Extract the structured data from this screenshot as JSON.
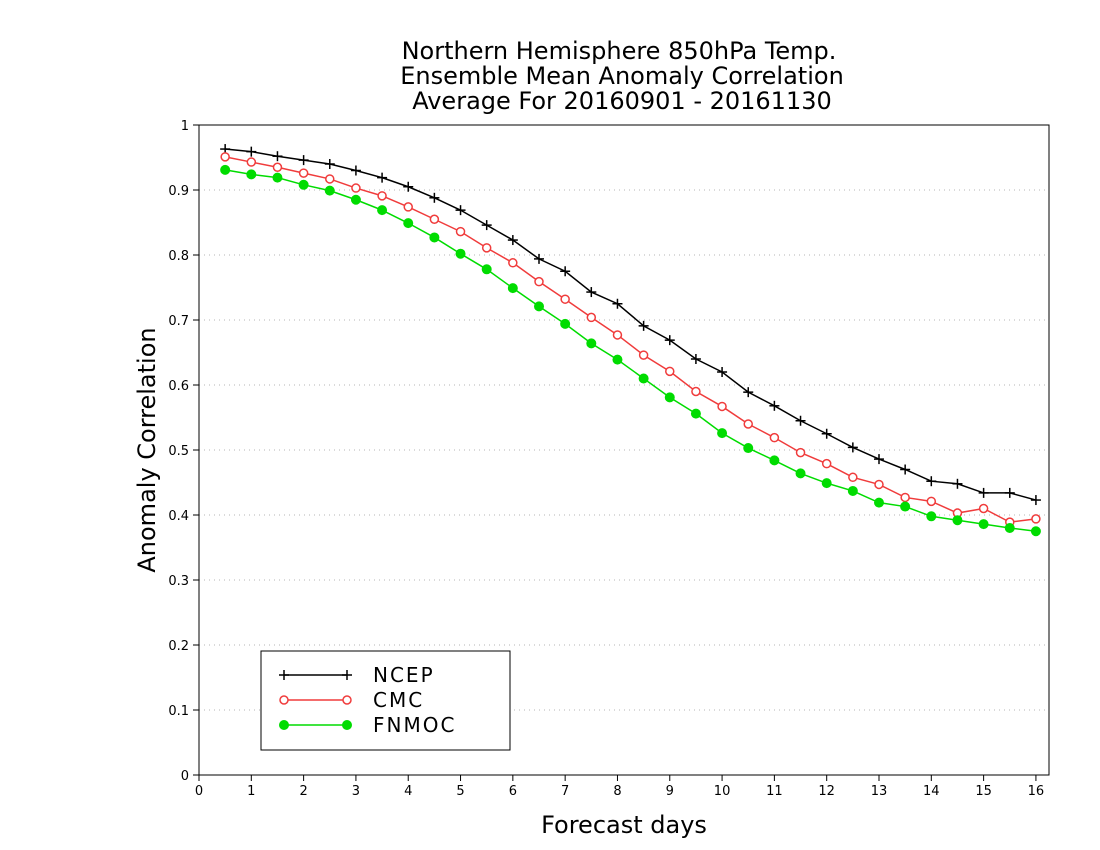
{
  "chart_data": {
    "type": "line",
    "title": [
      "Northern Hemisphere 850hPa Temp.",
      "Ensemble Mean Anomaly Correlation",
      "Average For 20160901 - 20161130"
    ],
    "xlabel": "Forecast days",
    "ylabel": "Anomaly Correlation",
    "xlim": [
      0,
      16.25
    ],
    "ylim": [
      0,
      1
    ],
    "xticks": [
      "0",
      "1",
      "2",
      "3",
      "4",
      "5",
      "6",
      "7",
      "8",
      "9",
      "10",
      "11",
      "12",
      "13",
      "14",
      "15",
      "16"
    ],
    "yticks": [
      "0",
      "0.1",
      "0.2",
      "0.3",
      "0.4",
      "0.5",
      "0.6",
      "0.7",
      "0.8",
      "0.9",
      "1"
    ],
    "grid": true,
    "legend_position": "bottom-left",
    "x": [
      0.5,
      1,
      1.5,
      2,
      2.5,
      3,
      3.5,
      4,
      4.5,
      5,
      5.5,
      6,
      6.5,
      7,
      7.5,
      8,
      8.5,
      9,
      9.5,
      10,
      10.5,
      11,
      11.5,
      12,
      12.5,
      13,
      13.5,
      14,
      14.5,
      15,
      15.5,
      16
    ],
    "series": [
      {
        "name": "NCEP",
        "color": "#000000",
        "marker": "plus",
        "values": [
          0.963,
          0.959,
          0.952,
          0.946,
          0.94,
          0.93,
          0.919,
          0.905,
          0.888,
          0.869,
          0.846,
          0.823,
          0.794,
          0.775,
          0.743,
          0.725,
          0.691,
          0.669,
          0.64,
          0.62,
          0.589,
          0.568,
          0.545,
          0.525,
          0.504,
          0.486,
          0.47,
          0.452,
          0.448,
          0.434,
          0.434,
          0.423
        ]
      },
      {
        "name": "CMC",
        "color": "#f03c3c",
        "marker": "open-circle",
        "values": [
          0.951,
          0.943,
          0.935,
          0.926,
          0.917,
          0.903,
          0.891,
          0.874,
          0.855,
          0.836,
          0.811,
          0.788,
          0.759,
          0.732,
          0.704,
          0.677,
          0.646,
          0.621,
          0.59,
          0.567,
          0.54,
          0.519,
          0.496,
          0.479,
          0.458,
          0.447,
          0.427,
          0.421,
          0.403,
          0.41,
          0.389,
          0.394
        ]
      },
      {
        "name": "FNMOC",
        "color": "#00dc00",
        "marker": "filled-circle",
        "values": [
          0.931,
          0.924,
          0.919,
          0.908,
          0.899,
          0.885,
          0.869,
          0.849,
          0.827,
          0.802,
          0.778,
          0.749,
          0.721,
          0.694,
          0.664,
          0.639,
          0.61,
          0.581,
          0.556,
          0.526,
          0.503,
          0.484,
          0.464,
          0.449,
          0.437,
          0.419,
          0.413,
          0.398,
          0.392,
          0.386,
          0.38,
          0.375
        ]
      }
    ]
  }
}
